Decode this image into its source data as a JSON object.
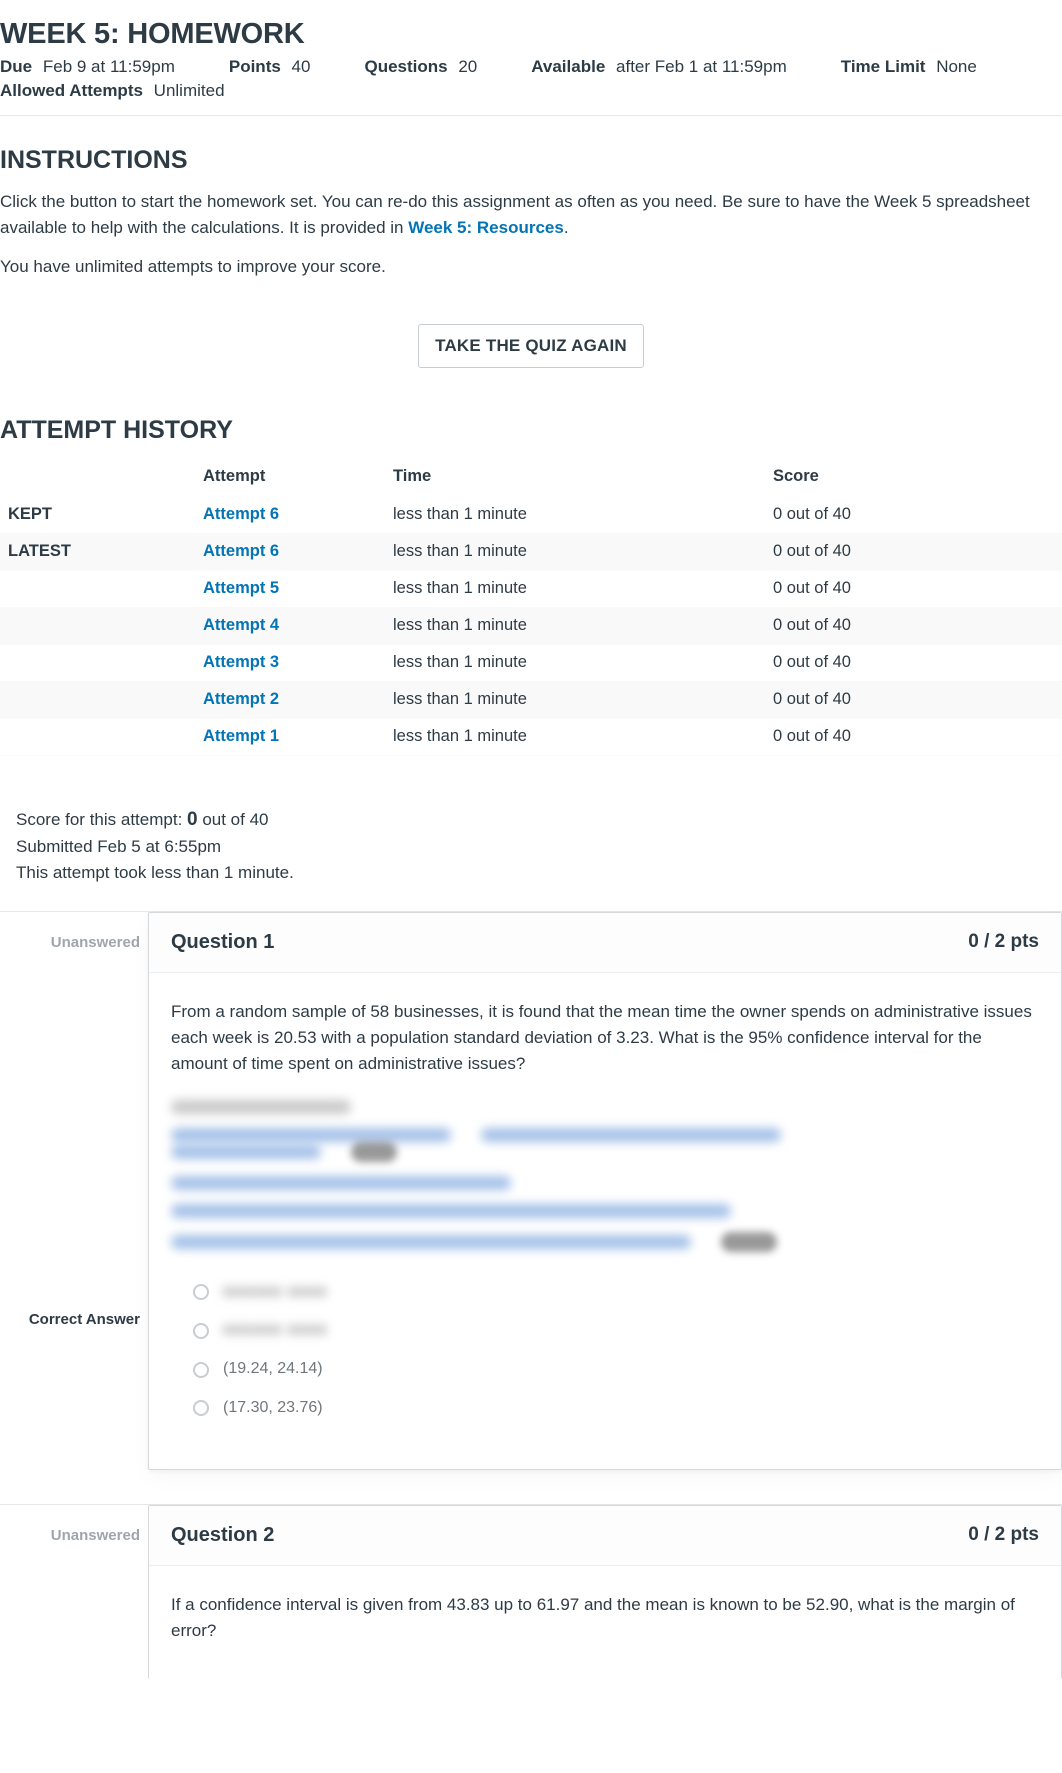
{
  "page_title": "WEEK 5: HOMEWORK",
  "meta": {
    "due_label": "Due",
    "due_value": "Feb 9 at 11:59pm",
    "points_label": "Points",
    "points_value": "40",
    "questions_label": "Questions",
    "questions_value": "20",
    "available_label": "Available",
    "available_value": "after Feb 1 at 11:59pm",
    "time_limit_label": "Time Limit",
    "time_limit_value": "None",
    "allowed_attempts_label": "Allowed Attempts",
    "allowed_attempts_value": "Unlimited"
  },
  "instructions": {
    "heading": "INSTRUCTIONS",
    "p1_a": "Click the button to start the homework set. You can re-do this assignment as often as you need. Be sure to have the Week 5 spreadsheet available to help with the calculations. It is provided in ",
    "p1_link": "Week 5: Resources",
    "p1_b": ".",
    "p2": "You have unlimited attempts to improve your score."
  },
  "take_quiz_label": "TAKE THE QUIZ AGAIN",
  "attempt_history": {
    "heading": "ATTEMPT HISTORY",
    "columns": {
      "status": "",
      "attempt": "Attempt",
      "time": "Time",
      "score": "Score"
    },
    "rows": [
      {
        "status": "KEPT",
        "attempt": "Attempt 6",
        "time": "less than 1 minute",
        "score": "0 out of 40"
      },
      {
        "status": "LATEST",
        "attempt": "Attempt 6",
        "time": "less than 1 minute",
        "score": "0 out of 40"
      },
      {
        "status": "",
        "attempt": "Attempt 5",
        "time": "less than 1 minute",
        "score": "0 out of 40"
      },
      {
        "status": "",
        "attempt": "Attempt 4",
        "time": "less than 1 minute",
        "score": "0 out of 40"
      },
      {
        "status": "",
        "attempt": "Attempt 3",
        "time": "less than 1 minute",
        "score": "0 out of 40"
      },
      {
        "status": "",
        "attempt": "Attempt 2",
        "time": "less than 1 minute",
        "score": "0 out of 40"
      },
      {
        "status": "",
        "attempt": "Attempt 1",
        "time": "less than 1 minute",
        "score": "0 out of 40"
      }
    ]
  },
  "score_summary": {
    "line1_a": "Score for this attempt: ",
    "line1_score": "0",
    "line1_b": " out of 40",
    "line2": "Submitted Feb 5 at 6:55pm",
    "line3": "This attempt took less than 1 minute."
  },
  "questions": [
    {
      "side_label": "Unanswered",
      "correct_side_label": "Correct Answer",
      "title": "Question 1",
      "pts": "0 / 2 pts",
      "prompt": "From a random sample of 58 businesses, it is found that the mean time the owner spends on administrative issues each week is 20.53 with a population standard deviation of 3.23. What is the 95% confidence interval for the amount of time spent on administrative issues?",
      "blurred_choice_1": "xxxxxx xxxx",
      "blurred_choice_2": "xxxxxx xxxx",
      "visible_choices": [
        "(19.24, 24.14)",
        "(17.30, 23.76)"
      ]
    },
    {
      "side_label": "Unanswered",
      "title": "Question 2",
      "pts": "0 / 2 pts",
      "prompt": "If a confidence interval is given from 43.83 up to 61.97 and the mean is known to be 52.90, what is the margin of error?"
    }
  ],
  "colors": {
    "link": "#0374b5",
    "text": "#2d3b45",
    "muted": "#9fa6ab",
    "border": "#d6d9db"
  }
}
